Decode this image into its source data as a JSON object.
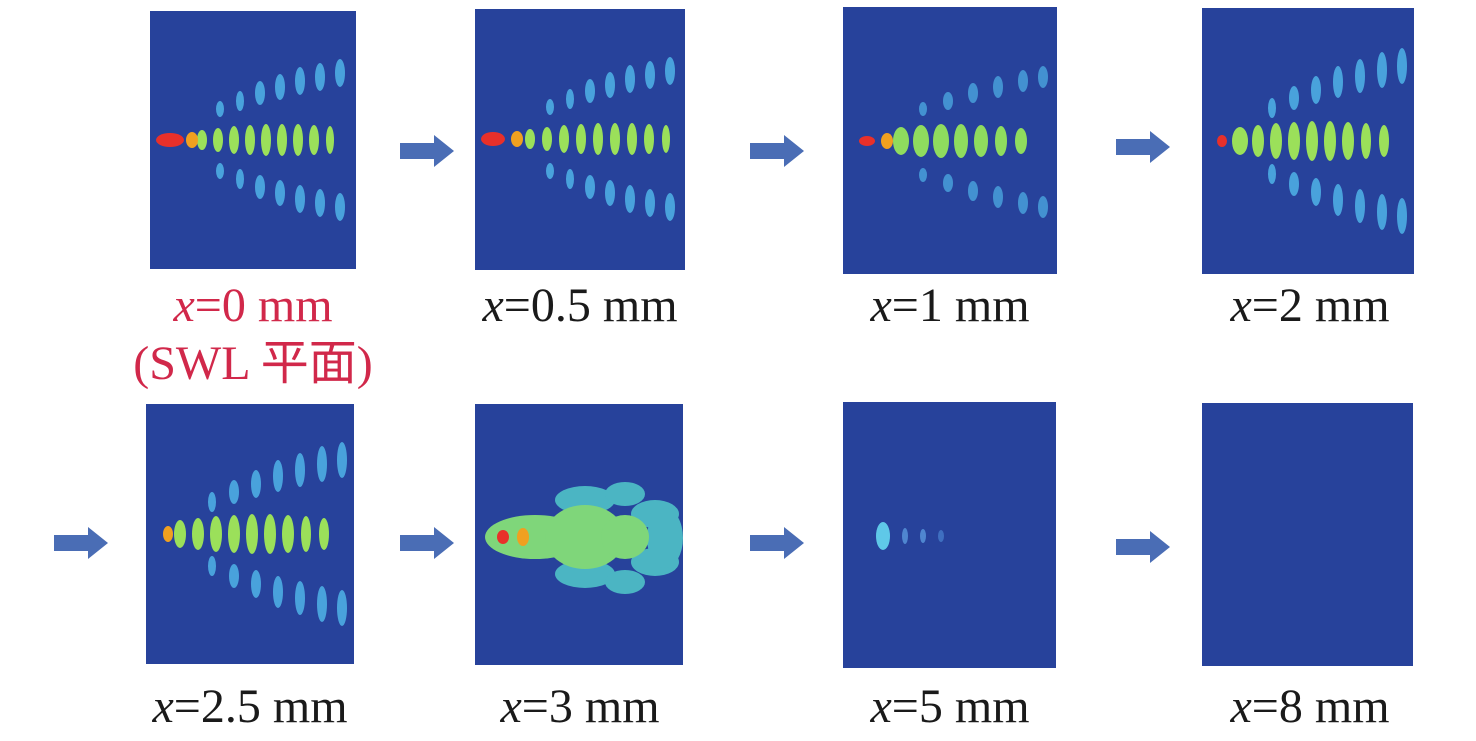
{
  "panels": [
    {
      "id": "p1",
      "var": "x",
      "value": "=0 mm",
      "note": "(SWL 平面)",
      "highlight": true
    },
    {
      "id": "p2",
      "var": "x",
      "value": "=0.5 mm"
    },
    {
      "id": "p3",
      "var": "x",
      "value": "=1 mm"
    },
    {
      "id": "p4",
      "var": "x",
      "value": "=2 mm"
    },
    {
      "id": "p5",
      "var": "x",
      "value": "=2.5 mm"
    },
    {
      "id": "p6",
      "var": "x",
      "value": "=3 mm"
    },
    {
      "id": "p7",
      "var": "x",
      "value": "=5 mm"
    },
    {
      "id": "p8",
      "var": "x",
      "value": "=8 mm"
    }
  ],
  "colors": {
    "background_field": "#27429b",
    "arrow": "#4a6db5",
    "label_highlight": "#d1284a",
    "label_default": "#1a1a1a"
  }
}
